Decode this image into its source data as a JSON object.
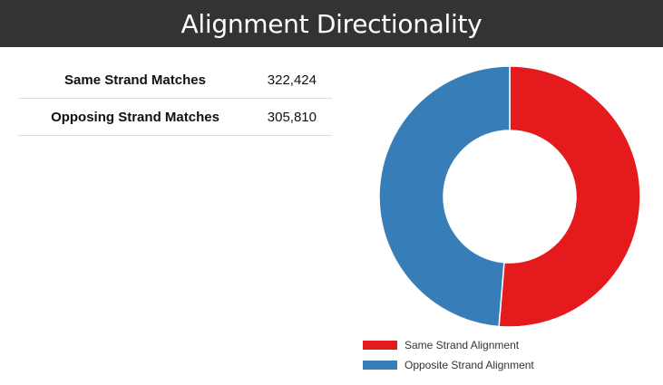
{
  "header": {
    "title": "Alignment Directionality"
  },
  "stats": [
    {
      "label": "Same Strand Matches",
      "value": "322,424"
    },
    {
      "label": "Opposing Strand Matches",
      "value": "305,810"
    }
  ],
  "chart_data": {
    "type": "pie",
    "donut": true,
    "categories": [
      "Same Strand Alignment",
      "Opposite Strand Alignment"
    ],
    "values": [
      322424,
      305810
    ],
    "colors": [
      "#e41a1c",
      "#377eb8"
    ],
    "legend_position": "bottom"
  }
}
